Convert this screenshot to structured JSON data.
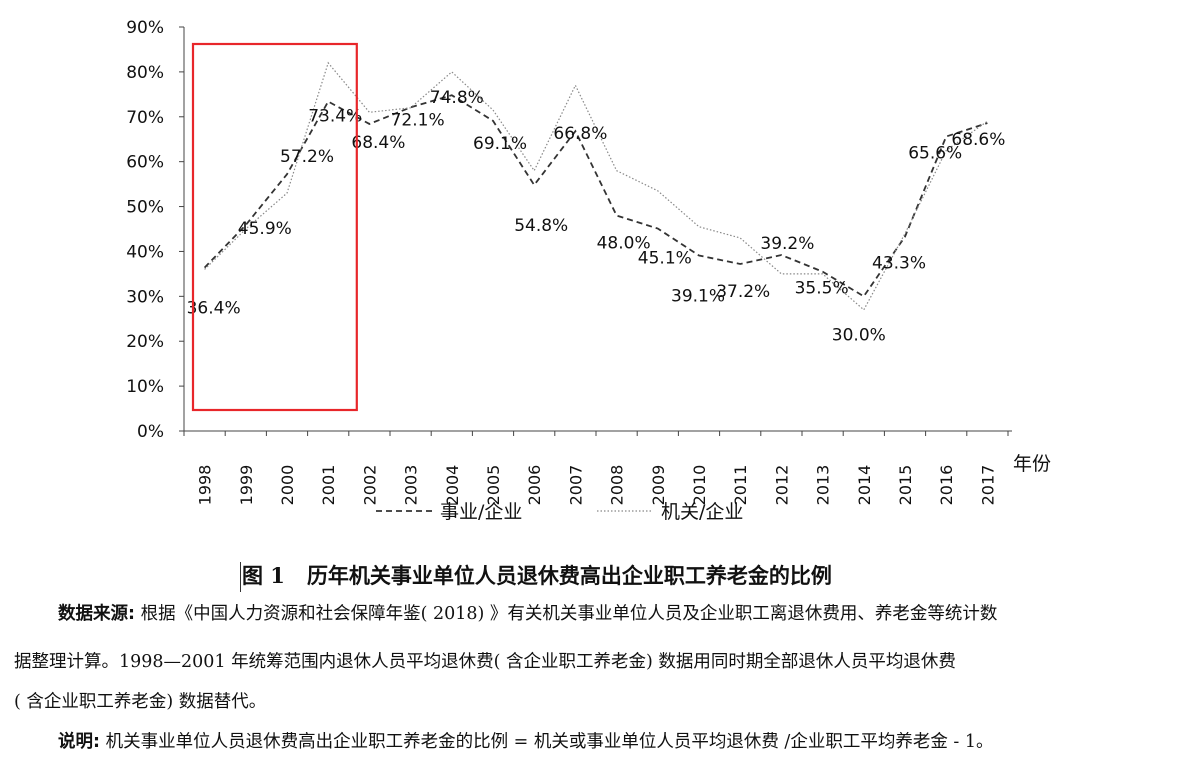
{
  "chart_data": {
    "type": "line",
    "x": [
      "1998",
      "1999",
      "2000",
      "2001",
      "2002",
      "2003",
      "2004",
      "2005",
      "2006",
      "2007",
      "2008",
      "2009",
      "2010",
      "2011",
      "2012",
      "2013",
      "2014",
      "2015",
      "2016",
      "2017"
    ],
    "xlabel": "年份",
    "ylabel": "",
    "ylim": [
      0,
      90
    ],
    "yticks": [
      "0%",
      "10%",
      "20%",
      "30%",
      "40%",
      "50%",
      "60%",
      "70%",
      "80%",
      "90%"
    ],
    "grid": false,
    "legend_position": "bottom",
    "series": [
      {
        "name": "事业/企业",
        "style": "dashed",
        "color": "#333333",
        "values": [
          36.4,
          45.9,
          57.2,
          73.4,
          68.4,
          72.1,
          74.8,
          69.1,
          54.8,
          66.8,
          48.0,
          45.1,
          39.1,
          37.2,
          39.2,
          35.5,
          30.0,
          43.3,
          65.6,
          68.6
        ],
        "labels": [
          "36.4%",
          "45.9%",
          "57.2%",
          "73.4%",
          "68.4%",
          "72.1%",
          "74.8%",
          "69.1%",
          "54.8%",
          "66.8%",
          "48.0%",
          "45.1%",
          "39.1%",
          "37.2%",
          "39.2%",
          "35.5%",
          "30.0%",
          "43.3%",
          "65.6%",
          "68.6%"
        ]
      },
      {
        "name": "机关/企业",
        "style": "dotted",
        "color": "#888888",
        "values": [
          36.0,
          45.0,
          53.0,
          82.0,
          71.0,
          72.0,
          80.0,
          71.5,
          58.0,
          77.0,
          58.0,
          53.5,
          45.5,
          43.0,
          35.0,
          35.0,
          27.0,
          44.0,
          62.5,
          69.0
        ]
      }
    ],
    "annotations": [
      {
        "type": "highlight-box",
        "color": "#e8262a",
        "x_from": "1998",
        "x_to": "2001"
      }
    ]
  },
  "caption": {
    "figure_number": "图 1",
    "title": "历年机关事业单位人员退休费高出企业职工养老金的比例"
  },
  "notes": {
    "source_label": "数据来源:",
    "source_line1": "根据《中国人力资源和社会保障年鉴( 2018) 》有关机关事业单位人员及企业职工离退休费用、养老金等统计数",
    "source_line2": "据整理计算。1998—2001 年统筹范围内退休人员平均退休费( 含企业职工养老金) 数据用同时期全部退休人员平均退休费",
    "source_line3": "( 含企业职工养老金) 数据替代。",
    "explain_label": "说明:",
    "explain_text": "机关事业单位人员退休费高出企业职工养老金的比例 = 机关或事业单位人员平均退休费 /企业职工平均养老金 - 1。"
  }
}
